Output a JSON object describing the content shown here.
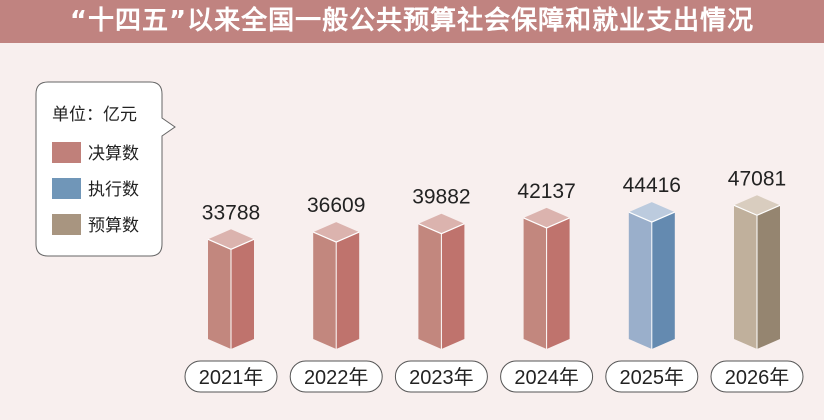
{
  "chart_data": {
    "type": "bar",
    "title": "“十四五”以来全国一般公共预算社会保障和就业支出情况",
    "unit_label": "单位：亿元",
    "categories": [
      "2021年",
      "2022年",
      "2023年",
      "2024年",
      "2025年",
      "2026年"
    ],
    "values": [
      33788,
      36609,
      39882,
      42137,
      44416,
      47081
    ],
    "value_labels": [
      "33788",
      "36609",
      "39882",
      "42137",
      "44416",
      "47081"
    ],
    "series_type": [
      "决算数",
      "决算数",
      "决算数",
      "决算数",
      "执行数",
      "预算数"
    ],
    "legend": [
      {
        "name": "决算数",
        "color": "#c0807a"
      },
      {
        "name": "执行数",
        "color": "#7096b8"
      },
      {
        "name": "预算数",
        "color": "#a89580"
      }
    ],
    "legend_placement": "top-left",
    "grid": false,
    "colors": {
      "决算数": {
        "front": "#c2877e",
        "side": "#bf736d",
        "top": "#dbb3ae"
      },
      "执行数": {
        "front": "#9aafcb",
        "side": "#648ab0",
        "top": "#bccbde"
      },
      "预算数": {
        "front": "#c0b09c",
        "side": "#958570",
        "top": "#d9cdbf"
      }
    }
  }
}
